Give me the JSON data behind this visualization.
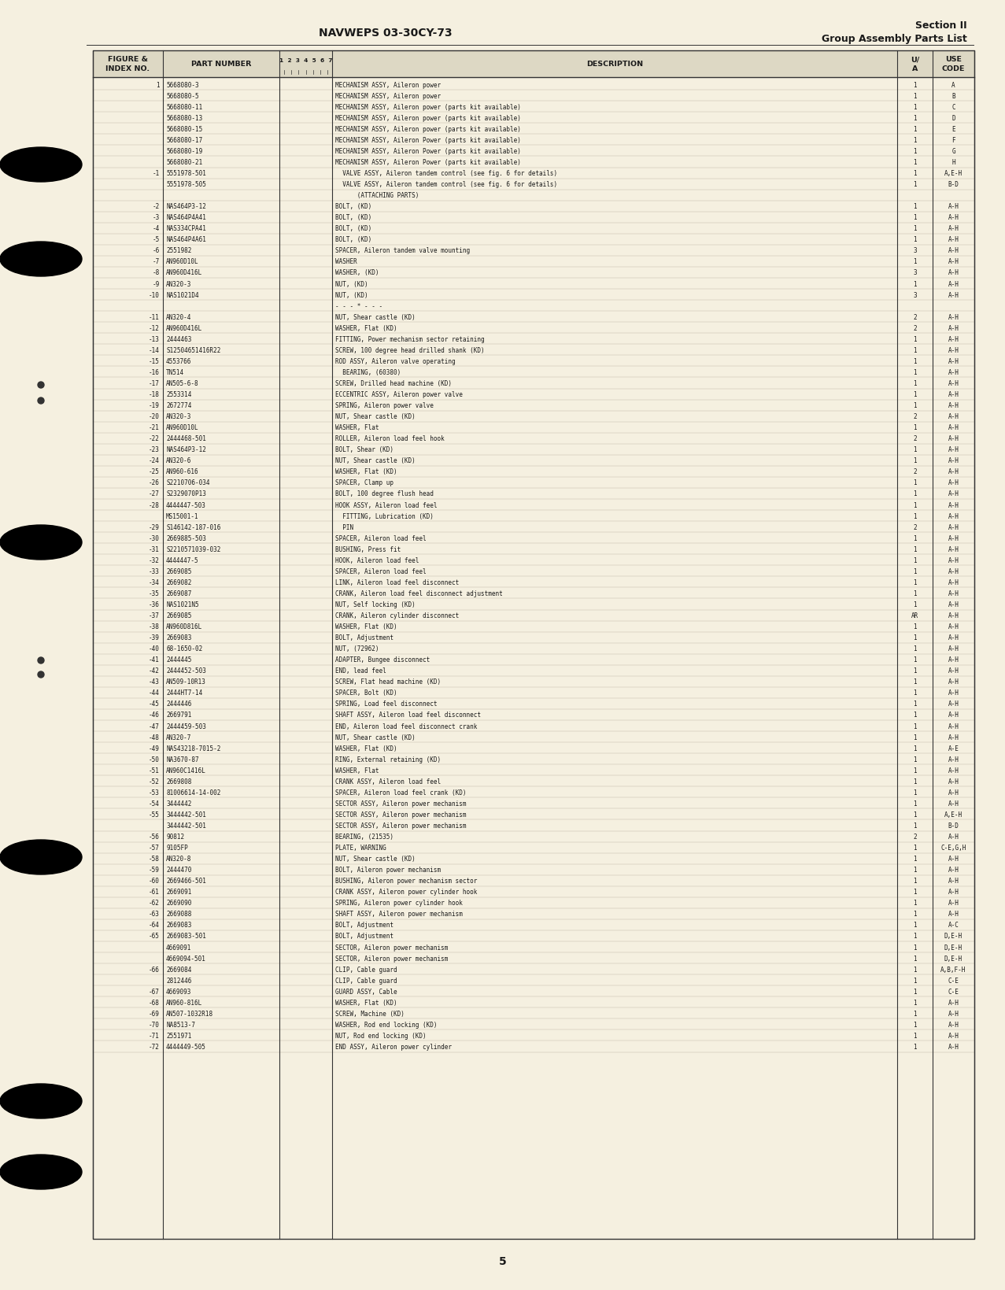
{
  "header_left": "NAVWEPS 03-30CY-73",
  "header_right_line1": "Section II",
  "header_right_line2": "Group Assembly Parts List",
  "page_number": "5",
  "bg_color": "#f5f0e0",
  "text_color": "#1a1a1a",
  "line_color": "#333333",
  "font_size": 5.5,
  "header_font_size": 6.8,
  "rows": [
    [
      "1",
      "5668080-3",
      "MECHANISM ASSY, Aileron power",
      "1",
      "A"
    ],
    [
      "",
      "5668080-5",
      "MECHANISM ASSY, Aileron power",
      "1",
      "B"
    ],
    [
      "",
      "5668080-11",
      "MECHANISM ASSY, Aileron power (parts kit available)",
      "1",
      "C"
    ],
    [
      "",
      "5668080-13",
      "MECHANISM ASSY, Aileron power (parts kit available)",
      "1",
      "D"
    ],
    [
      "",
      "5668080-15",
      "MECHANISM ASSY, Aileron power (parts kit available)",
      "1",
      "E"
    ],
    [
      "",
      "5668080-17",
      "MECHANISM ASSY, Aileron Power (parts kit available)",
      "1",
      "F"
    ],
    [
      "",
      "5668080-19",
      "MECHANISM ASSY, Aileron Power (parts kit available)",
      "1",
      "G"
    ],
    [
      "",
      "5668080-21",
      "MECHANISM ASSY, Aileron Power (parts kit available)",
      "1",
      "H"
    ],
    [
      "-1",
      "5551978-501",
      "  VALVE ASSY, Aileron tandem control (see fig. 6 for details)",
      "1",
      "A,E-H"
    ],
    [
      "",
      "5551978-505",
      "  VALVE ASSY, Aileron tandem control (see fig. 6 for details)",
      "1",
      "B-D"
    ],
    [
      "",
      "",
      "      (ATTACHING PARTS)",
      "",
      ""
    ],
    [
      "-2",
      "NAS464P3-12",
      "BOLT, (KD)",
      "1",
      "A-H"
    ],
    [
      "-3",
      "NAS464P4A41",
      "BOLT, (KD)",
      "1",
      "A-H"
    ],
    [
      "-4",
      "NAS334CPA41",
      "BOLT, (KD)",
      "1",
      "A-H"
    ],
    [
      "-5",
      "NAS464P4A61",
      "BOLT, (KD)",
      "1",
      "A-H"
    ],
    [
      "-6",
      "2551982",
      "SPACER, Aileron tandem valve mounting",
      "3",
      "A-H"
    ],
    [
      "-7",
      "AN960D10L",
      "WASHER",
      "1",
      "A-H"
    ],
    [
      "-8",
      "AN960D416L",
      "WASHER, (KD)",
      "3",
      "A-H"
    ],
    [
      "-9",
      "AN320-3",
      "NUT, (KD)",
      "1",
      "A-H"
    ],
    [
      "-10",
      "NAS1021D4",
      "NUT, (KD)",
      "3",
      "A-H"
    ],
    [
      "",
      "",
      "- - - * - - -",
      "",
      ""
    ],
    [
      "-11",
      "AN320-4",
      "NUT, Shear castle (KD)",
      "2",
      "A-H"
    ],
    [
      "-12",
      "AN960D416L",
      "WASHER, Flat (KD)",
      "2",
      "A-H"
    ],
    [
      "-13",
      "2444463",
      "FITTING, Power mechanism sector retaining",
      "1",
      "A-H"
    ],
    [
      "-14",
      "S12504651416R22",
      "SCREW, 100 degree head drilled shank (KD)",
      "1",
      "A-H"
    ],
    [
      "-15",
      "4553766",
      "ROD ASSY, Aileron valve operating",
      "1",
      "A-H"
    ],
    [
      "-16",
      "TN514",
      "  BEARING, (60380)",
      "1",
      "A-H"
    ],
    [
      "-17",
      "AN505-6-8",
      "SCREW, Drilled head machine (KD)",
      "1",
      "A-H"
    ],
    [
      "-18",
      "2553314",
      "ECCENTRIC ASSY, Aileron power valve",
      "1",
      "A-H"
    ],
    [
      "-19",
      "2672774",
      "SPRING, Aileron power valve",
      "1",
      "A-H"
    ],
    [
      "-20",
      "AN320-3",
      "NUT, Shear castle (KD)",
      "2",
      "A-H"
    ],
    [
      "-21",
      "AN960D10L",
      "WASHER, Flat",
      "1",
      "A-H"
    ],
    [
      "-22",
      "2444468-501",
      "ROLLER, Aileron load feel hook",
      "2",
      "A-H"
    ],
    [
      "-23",
      "NAS464P3-12",
      "BOLT, Shear (KD)",
      "1",
      "A-H"
    ],
    [
      "-24",
      "AN320-6",
      "NUT, Shear castle (KD)",
      "1",
      "A-H"
    ],
    [
      "-25",
      "AN960-616",
      "WASHER, Flat (KD)",
      "2",
      "A-H"
    ],
    [
      "-26",
      "S2210706-034",
      "SPACER, Clamp up",
      "1",
      "A-H"
    ],
    [
      "-27",
      "S2329070P13",
      "BOLT, 100 degree flush head",
      "1",
      "A-H"
    ],
    [
      "-28",
      "4444447-503",
      "HOOK ASSY, Aileron load feel",
      "1",
      "A-H"
    ],
    [
      "",
      "MS15001-1",
      "  FITTING, Lubrication (KD)",
      "1",
      "A-H"
    ],
    [
      "-29",
      "S146142-187-016",
      "  PIN",
      "2",
      "A-H"
    ],
    [
      "-30",
      "2669885-503",
      "SPACER, Aileron load feel",
      "1",
      "A-H"
    ],
    [
      "-31",
      "S2210571039-032",
      "BUSHING, Press fit",
      "1",
      "A-H"
    ],
    [
      "-32",
      "4444447-5",
      "HOOK, Aileron load feel",
      "1",
      "A-H"
    ],
    [
      "-33",
      "2669085",
      "SPACER, Aileron load feel",
      "1",
      "A-H"
    ],
    [
      "-34",
      "2669082",
      "LINK, Aileron load feel disconnect",
      "1",
      "A-H"
    ],
    [
      "-35",
      "2669087",
      "CRANK, Aileron load feel disconnect adjustment",
      "1",
      "A-H"
    ],
    [
      "-36",
      "NAS1021N5",
      "NUT, Self locking (KD)",
      "1",
      "A-H"
    ],
    [
      "-37",
      "2669085",
      "CRANK, Aileron cylinder disconnect",
      "AR",
      "A-H"
    ],
    [
      "-38",
      "AN960D816L",
      "WASHER, Flat (KD)",
      "1",
      "A-H"
    ],
    [
      "-39",
      "2669083",
      "BOLT, Adjustment",
      "1",
      "A-H"
    ],
    [
      "-40",
      "68-1650-02",
      "NUT, (72962)",
      "1",
      "A-H"
    ],
    [
      "-41",
      "2444445",
      "ADAPTER, Bungee disconnect",
      "1",
      "A-H"
    ],
    [
      "-42",
      "2444452-503",
      "END, lead feel",
      "1",
      "A-H"
    ],
    [
      "-43",
      "AN509-10R13",
      "SCREW, Flat head machine (KD)",
      "1",
      "A-H"
    ],
    [
      "-44",
      "2444HT7-14",
      "SPACER, Bolt (KD)",
      "1",
      "A-H"
    ],
    [
      "-45",
      "2444446",
      "SPRING, Load feel disconnect",
      "1",
      "A-H"
    ],
    [
      "-46",
      "2669791",
      "SHAFT ASSY, Aileron load feel disconnect",
      "1",
      "A-H"
    ],
    [
      "-47",
      "2444459-503",
      "END, Aileron load feel disconnect crank",
      "1",
      "A-H"
    ],
    [
      "-48",
      "AN320-7",
      "NUT, Shear castle (KD)",
      "1",
      "A-H"
    ],
    [
      "-49",
      "NAS43218-7015-2",
      "WASHER, Flat (KD)",
      "1",
      "A-E"
    ],
    [
      "-50",
      "NA3670-87",
      "RING, External retaining (KD)",
      "1",
      "A-H"
    ],
    [
      "-51",
      "AN960C1416L",
      "WASHER, Flat",
      "1",
      "A-H"
    ],
    [
      "-52",
      "2669808",
      "CRANK ASSY, Aileron load feel",
      "1",
      "A-H"
    ],
    [
      "-53",
      "81006614-14-002",
      "SPACER, Aileron load feel crank (KD)",
      "1",
      "A-H"
    ],
    [
      "-54",
      "3444442",
      "SECTOR ASSY, Aileron power mechanism",
      "1",
      "A-H"
    ],
    [
      "-55",
      "3444442-501",
      "SECTOR ASSY, Aileron power mechanism",
      "1",
      "A,E-H"
    ],
    [
      "",
      "3444442-501",
      "SECTOR ASSY, Aileron power mechanism",
      "1",
      "B-D"
    ],
    [
      "-56",
      "90812",
      "BEARING, (21535)",
      "2",
      "A-H"
    ],
    [
      "-57",
      "9105FP",
      "PLATE, WARNING",
      "1",
      "C-E,G,H"
    ],
    [
      "-58",
      "AN320-8",
      "NUT, Shear castle (KD)",
      "1",
      "A-H"
    ],
    [
      "-59",
      "2444470",
      "BOLT, Aileron power mechanism",
      "1",
      "A-H"
    ],
    [
      "-60",
      "2669466-501",
      "BUSHING, Aileron power mechanism sector",
      "1",
      "A-H"
    ],
    [
      "-61",
      "2669091",
      "CRANK ASSY, Aileron power cylinder hook",
      "1",
      "A-H"
    ],
    [
      "-62",
      "2669090",
      "SPRING, Aileron power cylinder hook",
      "1",
      "A-H"
    ],
    [
      "-63",
      "2669088",
      "SHAFT ASSY, Aileron power mechanism",
      "1",
      "A-H"
    ],
    [
      "-64",
      "2669083",
      "BOLT, Adjustment",
      "1",
      "A-C"
    ],
    [
      "-65",
      "2669083-501",
      "BOLT, Adjustment",
      "1",
      "D,E-H"
    ],
    [
      "",
      "4669091",
      "SECTOR, Aileron power mechanism",
      "1",
      "D,E-H"
    ],
    [
      "",
      "4669094-501",
      "SECTOR, Aileron power mechanism",
      "1",
      "D,E-H"
    ],
    [
      "-66",
      "2669084",
      "CLIP, Cable guard",
      "1",
      "A,B,F-H"
    ],
    [
      "",
      "2812446",
      "CLIP, Cable guard",
      "1",
      "C-E"
    ],
    [
      "-67",
      "4669093",
      "GUARD ASSY, Cable",
      "1",
      "C-E"
    ],
    [
      "-68",
      "AN960-816L",
      "WASHER, Flat (KD)",
      "1",
      "A-H"
    ],
    [
      "-69",
      "AN507-1032R18",
      "SCREW, Machine (KD)",
      "1",
      "A-H"
    ],
    [
      "-70",
      "NA8513-7",
      "WASHER, Rod end locking (KD)",
      "1",
      "A-H"
    ],
    [
      "-71",
      "2551971",
      "NUT, Rod end locking (KD)",
      "1",
      "A-H"
    ],
    [
      "-72",
      "4444449-505",
      "END ASSY, Aileron power cylinder",
      "1",
      "A-H"
    ]
  ]
}
